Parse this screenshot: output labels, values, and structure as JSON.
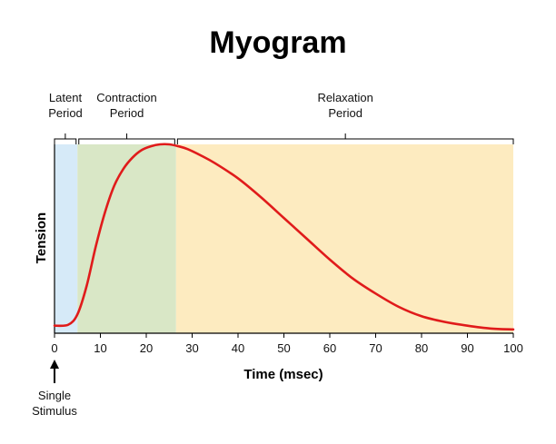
{
  "chart_data": {
    "type": "line",
    "title": "Myogram",
    "xlabel": "Time (msec)",
    "ylabel": "Tension",
    "xlim": [
      0,
      100
    ],
    "ylim": [
      0,
      1
    ],
    "x_ticks": [
      0,
      10,
      20,
      30,
      40,
      50,
      60,
      70,
      80,
      90,
      100
    ],
    "grid": false,
    "phases": [
      {
        "name": "latent",
        "label_lines": [
          "Latent",
          "Period"
        ],
        "start": 0,
        "end": 5,
        "color": "#d6eaf8"
      },
      {
        "name": "contraction",
        "label_lines": [
          "Contraction",
          "Period"
        ],
        "start": 5,
        "end": 26.5,
        "color": "#d9e7c6"
      },
      {
        "name": "relaxation",
        "label_lines": [
          "Relaxation",
          "Period"
        ],
        "start": 26.5,
        "end": 100,
        "color": "#fdebc0"
      }
    ],
    "series": [
      {
        "name": "Tension",
        "color": "#e01b1b",
        "x": [
          0,
          3,
          5,
          7,
          9,
          11,
          13,
          15,
          17,
          19,
          21,
          23,
          25,
          27,
          29,
          32,
          35,
          40,
          45,
          50,
          55,
          60,
          65,
          70,
          75,
          80,
          85,
          90,
          95,
          100
        ],
        "y": [
          0.04,
          0.045,
          0.1,
          0.25,
          0.46,
          0.64,
          0.78,
          0.87,
          0.93,
          0.97,
          0.99,
          1.0,
          1.0,
          0.99,
          0.975,
          0.94,
          0.9,
          0.82,
          0.72,
          0.61,
          0.5,
          0.39,
          0.29,
          0.21,
          0.14,
          0.09,
          0.06,
          0.04,
          0.025,
          0.02
        ]
      }
    ],
    "annotation": {
      "label_lines": [
        "Single",
        "Stimulus"
      ],
      "x": 0
    }
  }
}
